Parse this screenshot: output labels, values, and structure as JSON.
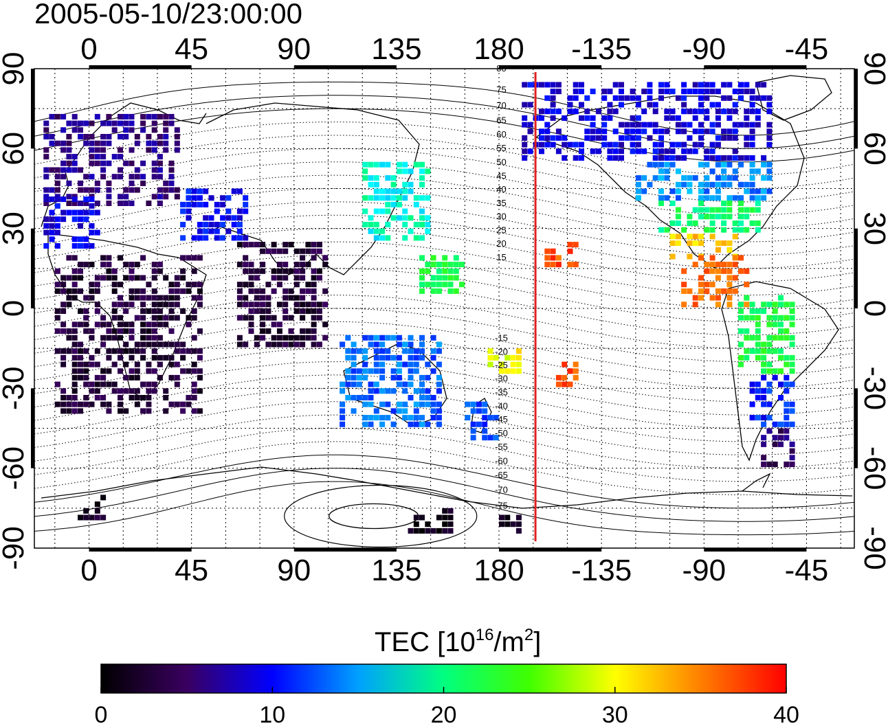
{
  "title": "2005-05-10/23:00:00",
  "map": {
    "projection": "equirectangular",
    "lon_range": [
      -24,
      336
    ],
    "lat_range": [
      -90,
      90
    ],
    "top_lon_ticks": [
      "0",
      "45",
      "90",
      "135",
      "180",
      "-135",
      "-90",
      "-45"
    ],
    "bottom_lon_ticks": [
      "0",
      "45",
      "90",
      "135",
      "180",
      "-135",
      "-90",
      "-45"
    ],
    "left_lat_ticks": [
      "90",
      "60",
      "30",
      "0",
      "-30",
      "-60",
      "-90"
    ],
    "right_lat_ticks": [
      "90",
      "60",
      "30",
      "0",
      "-30",
      "-60",
      "-90"
    ],
    "lon_tick_values": [
      0,
      45,
      90,
      135,
      180,
      225,
      270,
      315
    ],
    "lat_tick_values": [
      90,
      60,
      30,
      0,
      -30,
      -60,
      -90
    ],
    "grid": "dotted, every 15 degrees",
    "terminator_line": {
      "color": "#e02020",
      "lon": 196
    },
    "magnetic_latitude_labels": [
      "80",
      "75",
      "70",
      "65",
      "60",
      "55",
      "50",
      "45",
      "40",
      "35",
      "30",
      "25",
      "20",
      "15",
      "-15",
      "-20",
      "-25",
      "-30",
      "-35",
      "-40",
      "-45",
      "-50",
      "-55",
      "-60",
      "-65",
      "-70",
      "-75"
    ]
  },
  "chart_data": {
    "type": "heatmap",
    "variable": "TEC",
    "unit_label": "TEC  [10^16/m^2]",
    "colorbar": {
      "min": 0,
      "max": 40,
      "ticks": [
        "0",
        "10",
        "20",
        "30",
        "40"
      ],
      "colors": [
        "#000000",
        "#3a0060",
        "#0000ff",
        "#00ffff",
        "#00ff00",
        "#ffff00",
        "#ff7f00",
        "#ff0000"
      ]
    },
    "regions": [
      {
        "lon": [
          -20,
          40
        ],
        "lat": [
          38,
          72
        ],
        "tec": 6
      },
      {
        "lon": [
          -20,
          5
        ],
        "lat": [
          22,
          40
        ],
        "tec": 9
      },
      {
        "lon": [
          40,
          70
        ],
        "lat": [
          25,
          45
        ],
        "tec": 10
      },
      {
        "lon": [
          -15,
          50
        ],
        "lat": [
          -40,
          20
        ],
        "tec": 3
      },
      {
        "lon": [
          65,
          105
        ],
        "lat": [
          -15,
          25
        ],
        "tec": 3
      },
      {
        "lon": [
          120,
          150
        ],
        "lat": [
          25,
          55
        ],
        "tec": 18
      },
      {
        "lon": [
          145,
          165
        ],
        "lat": [
          5,
          20
        ],
        "tec": 22
      },
      {
        "lon": [
          110,
          155
        ],
        "lat": [
          -45,
          -10
        ],
        "tec": 13
      },
      {
        "lon": [
          165,
          180
        ],
        "lat": [
          -50,
          -35
        ],
        "tec": 12
      },
      {
        "lon": [
          175,
          190
        ],
        "lat": [
          -25,
          -15
        ],
        "tec": 30
      },
      {
        "lon": [
          200,
          215
        ],
        "lat": [
          15,
          25
        ],
        "tec": 37
      },
      {
        "lon": [
          205,
          215
        ],
        "lat": [
          -30,
          -20
        ],
        "tec": 37
      },
      {
        "lon": [
          190,
          300
        ],
        "lat": [
          55,
          85
        ],
        "tec": 9
      },
      {
        "lon": [
          240,
          300
        ],
        "lat": [
          40,
          55
        ],
        "tec": 14
      },
      {
        "lon": [
          250,
          295
        ],
        "lat": [
          28,
          40
        ],
        "tec": 21
      },
      {
        "lon": [
          255,
          285
        ],
        "lat": [
          18,
          28
        ],
        "tec": 32
      },
      {
        "lon": [
          260,
          290
        ],
        "lat": [
          0,
          18
        ],
        "tec": 36
      },
      {
        "lon": [
          285,
          310
        ],
        "lat": [
          -25,
          5
        ],
        "tec": 22
      },
      {
        "lon": [
          290,
          310
        ],
        "lat": [
          -45,
          -25
        ],
        "tec": 11
      },
      {
        "lon": [
          295,
          310
        ],
        "lat": [
          -60,
          -45
        ],
        "tec": 5
      },
      {
        "lon": [
          -5,
          10
        ],
        "lat": [
          -80,
          -70
        ],
        "tec": 2
      },
      {
        "lon": [
          140,
          160
        ],
        "lat": [
          -85,
          -75
        ],
        "tec": 1
      },
      {
        "lon": [
          180,
          190
        ],
        "lat": [
          -85,
          -78
        ],
        "tec": 1
      }
    ]
  }
}
